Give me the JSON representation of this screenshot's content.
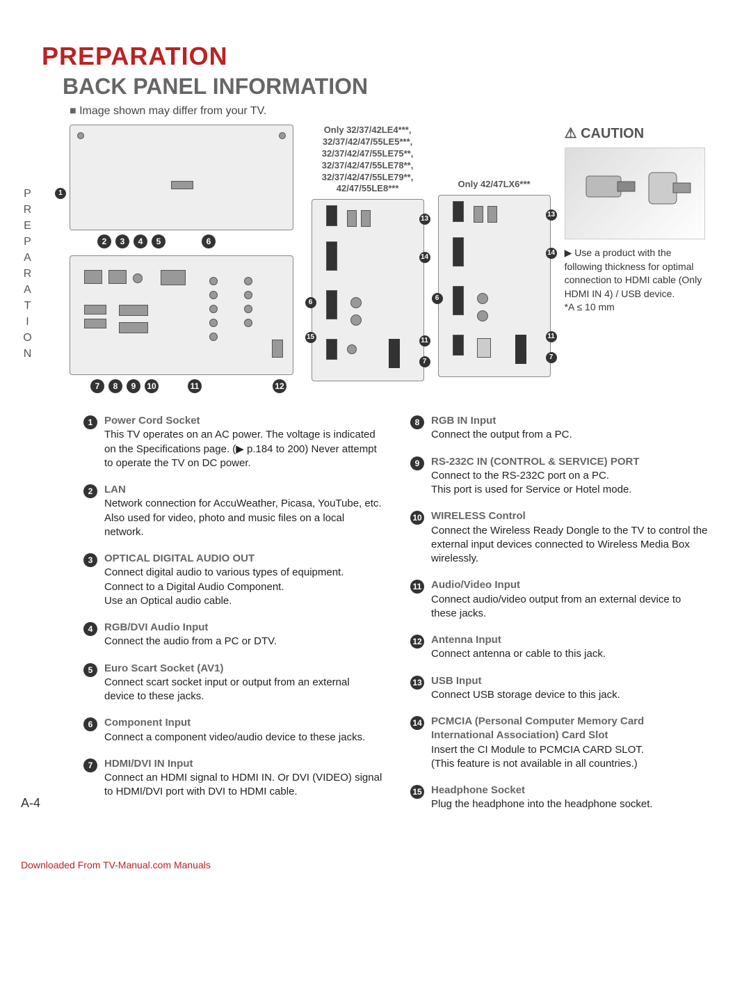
{
  "titles": {
    "main": "PREPARATION",
    "sub": "BACK PANEL INFORMATION",
    "note": "Image shown may differ from your TV.",
    "side_tab": "PREPARATION",
    "page_num": "A-4",
    "footer": "Downloaded From TV-Manual.com Manuals"
  },
  "model_labels": {
    "group_a": "Only 32/37/42LE4***,\n32/37/42/47/55LE5***,\n32/37/42/47/55LE75**,\n32/37/42/47/55LE78**,\n32/37/42/47/55LE79**,\n42/47/55LE8***",
    "group_b": "Only 42/47LX6***"
  },
  "caution": {
    "title": "CAUTION",
    "text": "Use a product with the following thickness for optimal connection to HDMI cable (Only HDMI IN 4) / USB device.\n*A ≤ 10 mm"
  },
  "items": [
    {
      "n": "1",
      "title": "Power Cord Socket",
      "body": "This TV operates on an AC power. The voltage is indicated on the Specifications page. (▶ p.184 to 200) Never attempt to operate the TV on DC power."
    },
    {
      "n": "2",
      "title": "LAN",
      "body": "Network connection for AccuWeather, Picasa, YouTube, etc.\nAlso used for video, photo and music files on a local network."
    },
    {
      "n": "3",
      "title": "OPTICAL DIGITAL AUDIO OUT",
      "body": "Connect digital audio to various types of equipment.\nConnect to a Digital Audio Component.\nUse an Optical audio cable."
    },
    {
      "n": "4",
      "title": "RGB/DVI Audio Input",
      "body": "Connect the audio from a PC or DTV."
    },
    {
      "n": "5",
      "title": "Euro Scart Socket (AV1)",
      "body": "Connect scart socket input or output from an external device to these jacks."
    },
    {
      "n": "6",
      "title": "Component Input",
      "body": "Connect a component video/audio device to these jacks."
    },
    {
      "n": "7",
      "title": "HDMI/DVI IN Input",
      "body": "Connect an HDMI signal to HDMI IN. Or DVI (VIDEO) signal to HDMI/DVI port with DVI to HDMI cable."
    },
    {
      "n": "8",
      "title": "RGB IN Input",
      "body": "Connect the output from a PC."
    },
    {
      "n": "9",
      "title": "RS-232C IN (CONTROL & SERVICE) PORT",
      "body": "Connect to the RS-232C port on a PC.\nThis port is used for Service or Hotel mode."
    },
    {
      "n": "10",
      "title": "WIRELESS Control",
      "body": "Connect the Wireless Ready Dongle to the TV to control the external input devices connected to Wireless Media Box wirelessly."
    },
    {
      "n": "11",
      "title": "Audio/Video Input",
      "body": "Connect audio/video output from an external device to these jacks."
    },
    {
      "n": "12",
      "title": "Antenna Input",
      "body": "Connect antenna or cable to this jack."
    },
    {
      "n": "13",
      "title": "USB Input",
      "body": "Connect USB storage device to this jack."
    },
    {
      "n": "14",
      "title": "PCMCIA (Personal Computer Memory Card International Association) Card Slot",
      "body": "Insert the CI Module to PCMCIA CARD SLOT.\n(This feature is not available in all countries.)"
    },
    {
      "n": "15",
      "title": "Headphone Socket",
      "body": "Plug the headphone into the headphone socket."
    }
  ],
  "split_index": 7,
  "colors": {
    "accent": "#b22222",
    "heading_gray": "#666666",
    "body": "#222222",
    "badge_bg": "#333333"
  }
}
